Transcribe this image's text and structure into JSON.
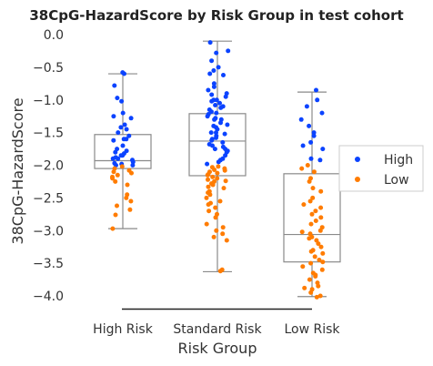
{
  "chart_data": {
    "type": "box-strip",
    "title": "38CpG-HazardScore by Risk Group in test cohort",
    "xlabel": "Risk Group",
    "ylabel": "38CpG-HazardScore",
    "ylim": [
      -4.2,
      0.0
    ],
    "y_ticks": [
      "0.0",
      "−0.5",
      "−1.0",
      "−1.5",
      "−2.0",
      "−2.5",
      "−3.0",
      "−3.5",
      "−4.0"
    ],
    "y_tick_values": [
      0.0,
      -0.5,
      -1.0,
      -1.5,
      -2.0,
      -2.5,
      -3.0,
      -3.5,
      -4.0
    ],
    "categories": [
      "High Risk",
      "Standard Risk",
      "Low Risk"
    ],
    "boxes": [
      {
        "category": "High Risk",
        "whisker_low": -2.97,
        "q1": -2.05,
        "median": -1.93,
        "q3": -1.53,
        "whisker_high": -0.6
      },
      {
        "category": "Standard Risk",
        "whisker_low": -3.63,
        "q1": -2.16,
        "median": -1.63,
        "q3": -1.21,
        "whisker_high": -0.1
      },
      {
        "category": "Low Risk",
        "whisker_low": -4.01,
        "q1": -3.48,
        "median": -3.06,
        "q3": -2.13,
        "whisker_high": -0.88
      }
    ],
    "series": [
      {
        "name": "High",
        "color": "#0b43ff",
        "points": [
          {
            "x": "High Risk",
            "y": [
              -0.58,
              -0.6,
              -0.78,
              -0.97,
              -1.02,
              -1.2,
              -1.25,
              -1.28,
              -1.38,
              -1.42,
              -1.5,
              -1.55,
              -1.6,
              -1.62,
              -1.7,
              -1.75,
              -1.78,
              -1.8,
              -1.82,
              -1.85,
              -1.88,
              -1.9,
              -1.92,
              -1.95,
              -1.97,
              -1.98,
              -2.0,
              -2.0,
              -1.85,
              -1.6,
              -1.45,
              -1.9
            ]
          },
          {
            "x": "Standard Risk",
            "y": [
              -0.12,
              -0.25,
              -0.28,
              -0.4,
              -0.5,
              -0.55,
              -0.6,
              -0.62,
              -0.75,
              -0.8,
              -0.85,
              -0.9,
              -0.92,
              -0.95,
              -1.0,
              -1.02,
              -1.05,
              -1.08,
              -1.1,
              -1.12,
              -1.15,
              -1.18,
              -1.2,
              -1.22,
              -1.25,
              -1.28,
              -1.3,
              -1.35,
              -1.38,
              -1.4,
              -1.42,
              -1.45,
              -1.5,
              -1.52,
              -1.55,
              -1.58,
              -1.6,
              -1.62,
              -1.65,
              -1.68,
              -1.7,
              -1.72,
              -1.75,
              -1.78,
              -1.8,
              -1.85,
              -1.9,
              -1.92,
              -1.95,
              -1.98,
              -1.0,
              -1.3,
              -1.5,
              -1.75
            ]
          },
          {
            "x": "Low Risk",
            "y": [
              -0.85,
              -1.0,
              -1.1,
              -1.2,
              -1.3,
              -1.4,
              -1.5,
              -1.65,
              -1.7,
              -1.75,
              -1.9,
              -1.92,
              -1.55
            ]
          }
        ]
      },
      {
        "name": "Low",
        "color": "#ff7c00",
        "points": [
          {
            "x": "High Risk",
            "y": [
              -2.02,
              -2.05,
              -2.08,
              -2.12,
              -2.15,
              -2.2,
              -2.25,
              -2.3,
              -2.45,
              -2.5,
              -2.55,
              -2.62,
              -2.68,
              -2.76,
              -2.97,
              -2.1,
              -2.18
            ]
          },
          {
            "x": "Standard Risk",
            "y": [
              -2.02,
              -2.05,
              -2.08,
              -2.1,
              -2.12,
              -2.15,
              -2.18,
              -2.2,
              -2.22,
              -2.25,
              -2.28,
              -2.3,
              -2.35,
              -2.4,
              -2.45,
              -2.5,
              -2.55,
              -2.6,
              -2.65,
              -2.7,
              -2.75,
              -2.8,
              -2.9,
              -2.95,
              -3.0,
              -3.05,
              -3.1,
              -3.15,
              -3.6,
              -3.62,
              -2.03,
              -2.07,
              -2.14,
              -2.24,
              -2.33,
              -2.42,
              -2.58
            ]
          },
          {
            "x": "Low Risk",
            "y": [
              -2.0,
              -2.05,
              -2.1,
              -2.2,
              -2.25,
              -2.35,
              -2.4,
              -2.5,
              -2.55,
              -2.6,
              -2.65,
              -2.7,
              -2.75,
              -2.8,
              -2.85,
              -2.9,
              -2.95,
              -3.0,
              -3.05,
              -3.1,
              -3.15,
              -3.2,
              -3.25,
              -3.3,
              -3.35,
              -3.4,
              -3.45,
              -3.5,
              -3.55,
              -3.6,
              -3.65,
              -3.7,
              -3.75,
              -3.8,
              -3.85,
              -3.9,
              -3.95,
              -4.0,
              -4.02,
              -3.02,
              -3.12,
              -3.32,
              -3.48,
              -3.68,
              -3.88
            ]
          }
        ]
      }
    ],
    "legend": {
      "placement": "right",
      "entries": [
        "High",
        "Low"
      ]
    },
    "grid": false,
    "box_color": "#8a8a8a"
  }
}
